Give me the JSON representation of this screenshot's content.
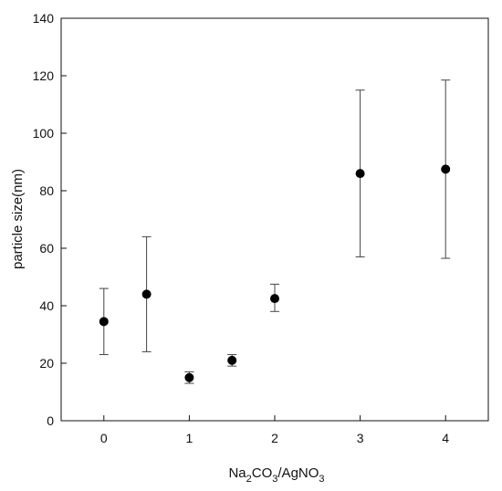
{
  "chart_data": {
    "type": "scatter",
    "xlabel": {
      "base": "Na",
      "sub1": "2",
      "mid": "CO",
      "sub2": "3",
      "sep": "/AgNO",
      "sub3": "3"
    },
    "ylabel": "particle size(nm)",
    "xlim": [
      -0.5,
      4.5
    ],
    "ylim": [
      0,
      140
    ],
    "xticks": [
      0,
      1,
      2,
      3,
      4
    ],
    "yticks": [
      0,
      20,
      40,
      60,
      80,
      100,
      120,
      140
    ],
    "grid": false,
    "series": [
      {
        "marker_color": "#000000",
        "points": [
          {
            "x": 0,
            "y": 34.5,
            "err_low": 23,
            "err_high": 46
          },
          {
            "x": 0.5,
            "y": 44,
            "err_low": 24,
            "err_high": 64
          },
          {
            "x": 1,
            "y": 15,
            "err_low": 13,
            "err_high": 17
          },
          {
            "x": 1.5,
            "y": 21,
            "err_low": 19,
            "err_high": 23
          },
          {
            "x": 2,
            "y": 42.5,
            "err_low": 38,
            "err_high": 47.5
          },
          {
            "x": 3,
            "y": 86,
            "err_low": 57,
            "err_high": 115
          },
          {
            "x": 4,
            "y": 87.5,
            "err_low": 56.5,
            "err_high": 118.5
          }
        ]
      }
    ]
  }
}
